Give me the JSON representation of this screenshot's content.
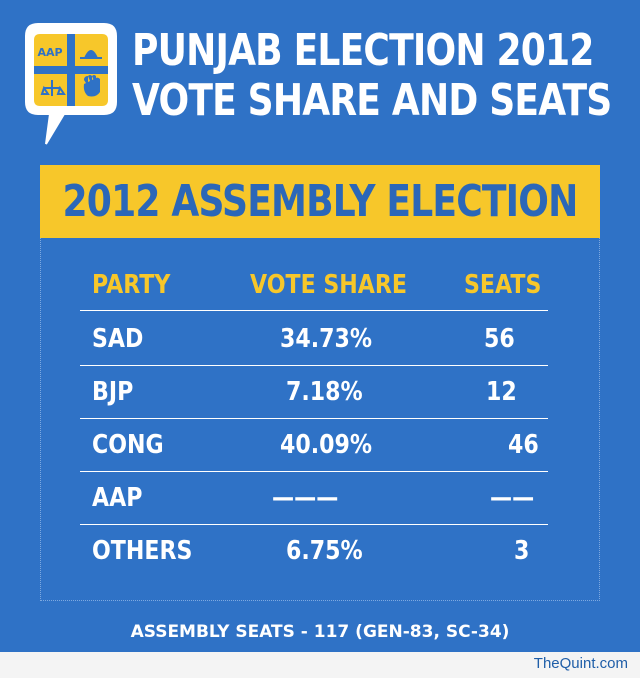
{
  "title": {
    "line1": "PUNJAB ELECTION 2012",
    "line2": "VOTE SHARE AND SEATS"
  },
  "logo": {
    "icon": "election-symbols-icon",
    "label": "AAP"
  },
  "banner": {
    "text": "2012 ASSEMBLY ELECTION"
  },
  "table": {
    "headers": [
      "PARTY",
      "VOTE SHARE",
      "SEATS"
    ],
    "rows": [
      {
        "party": "SAD",
        "vote_share": "34.73%",
        "seats": "56"
      },
      {
        "party": "BJP",
        "vote_share": "7.18%",
        "seats": "12"
      },
      {
        "party": "CONG",
        "vote_share": "40.09%",
        "seats": "46"
      },
      {
        "party": "AAP",
        "vote_share": "———",
        "seats": "——"
      },
      {
        "party": "OTHERS",
        "vote_share": "6.75%",
        "seats": "3"
      }
    ]
  },
  "footer": {
    "note": "ASSEMBLY SEATS - 117 (GEN-83, SC-34)"
  },
  "brand": {
    "name": "TheQuint.com"
  },
  "colors": {
    "background": "#2f72c6",
    "accent": "#f7c72a",
    "text": "#ffffff"
  }
}
